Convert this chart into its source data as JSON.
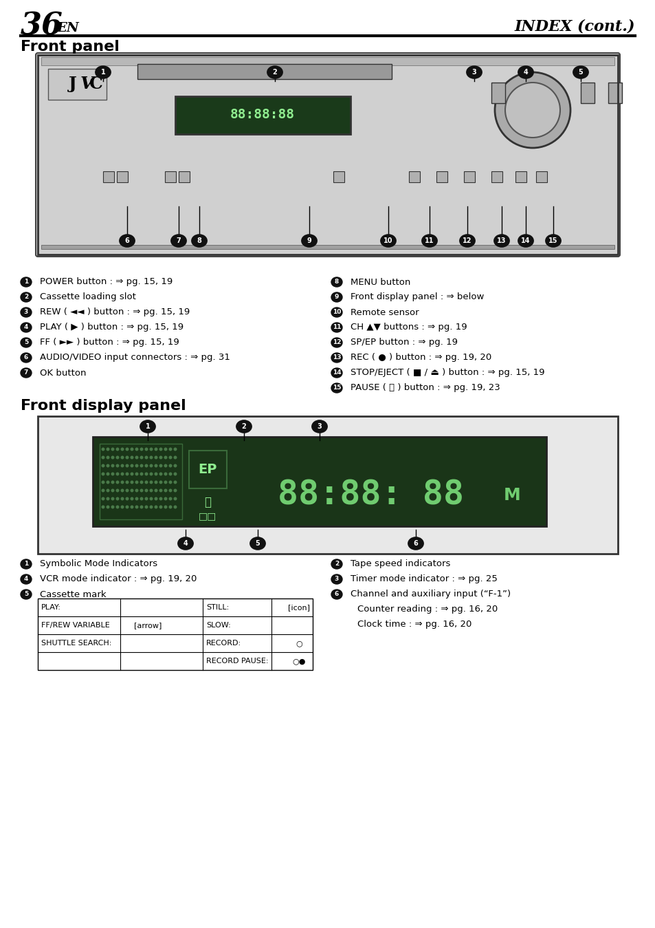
{
  "page_num": "36",
  "page_suffix": "EN",
  "page_title_right": "INDEX (cont.)",
  "section1_title": "Front panel",
  "section2_title": "Front display panel",
  "bg_color": "#ffffff",
  "text_color": "#000000",
  "vcr_bg": "#c8c8c8",
  "vcr_dark": "#888888",
  "vcr_darker": "#555555",
  "display_bg": "#2d4a2d",
  "display_text": "#90ee90",
  "bullet_bg": "#111111",
  "bullet_text": "#ffffff",
  "left_col_items": [
    "① POWER button : ⇒ pg. 15, 19",
    "② Cassette loading slot",
    "③ REW ( ◄◄ ) button : ⇒ pg. 15, 19",
    "④ PLAY ( ▶ ) button : ⇒ pg. 15, 19",
    "⑤ FF ( ►► ) button : ⇒ pg. 15, 19",
    "⑥ AUDIO/VIDEO input connectors : ⇒ pg. 31",
    "⑦ OK button"
  ],
  "right_col_items": [
    "⑧ MENU button",
    "⑨ Front display panel : ⇒ below",
    "⑩ Remote sensor",
    "⑪ CH ▲▼ buttons : ⇒ pg. 19",
    "⑫ SP/EP button : ⇒ pg. 19",
    "⑬ REC ( ● ) button : ⇒ pg. 19, 20",
    "⑭ STOP/EJECT ( ■ / ⏏ ) button : ⇒ pg. 15, 19",
    "⑮ PAUSE ( ⏸ ) button : ⇒ pg. 19, 23"
  ],
  "display_left_col": [
    "① Symbolic Mode Indicators",
    "④ VCR mode indicator : ⇒ pg. 19, 20",
    "⑤ Cassette mark"
  ],
  "display_right_col": [
    "② Tape speed indicators",
    "③ Timer mode indicator : ⇒ pg. 25",
    "⑥ Channel and auxiliary input (“F-1”)",
    "     Counter reading : ⇒ pg. 16, 20",
    "     Clock time : ⇒ pg. 16, 20"
  ],
  "table_headers": [
    "PLAY:",
    "FF/REW VARIABLE",
    "SHUTTLE SEARCH:"
  ],
  "table_col2": [
    "STILL:",
    "SLOW:",
    "RECORD:",
    "RECORD PAUSE:"
  ]
}
